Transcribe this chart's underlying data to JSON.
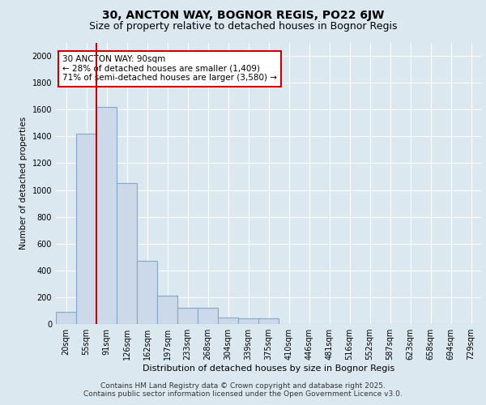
{
  "title": "30, ANCTON WAY, BOGNOR REGIS, PO22 6JW",
  "subtitle": "Size of property relative to detached houses in Bognor Regis",
  "xlabel": "Distribution of detached houses by size in Bognor Regis",
  "ylabel": "Number of detached properties",
  "categories": [
    "20sqm",
    "55sqm",
    "91sqm",
    "126sqm",
    "162sqm",
    "197sqm",
    "233sqm",
    "268sqm",
    "304sqm",
    "339sqm",
    "375sqm",
    "410sqm",
    "446sqm",
    "481sqm",
    "516sqm",
    "552sqm",
    "587sqm",
    "623sqm",
    "658sqm",
    "694sqm",
    "729sqm"
  ],
  "values": [
    90,
    1420,
    1620,
    1050,
    470,
    210,
    120,
    120,
    50,
    40,
    40,
    0,
    0,
    0,
    0,
    0,
    0,
    0,
    0,
    0,
    0
  ],
  "bar_color": "#ccd9e8",
  "bar_edgecolor": "#7fa8cc",
  "vline_color": "#cc0000",
  "vline_bar_index": 2,
  "annotation_text": "30 ANCTON WAY: 90sqm\n← 28% of detached houses are smaller (1,409)\n71% of semi-detached houses are larger (3,580) →",
  "annotation_box_facecolor": "#ffffff",
  "annotation_box_edgecolor": "#cc0000",
  "ylim": [
    0,
    2100
  ],
  "yticks": [
    0,
    200,
    400,
    600,
    800,
    1000,
    1200,
    1400,
    1600,
    1800,
    2000
  ],
  "bg_color": "#dce8f0",
  "plot_bg_color": "#dce8f0",
  "footer_line1": "Contains HM Land Registry data © Crown copyright and database right 2025.",
  "footer_line2": "Contains public sector information licensed under the Open Government Licence v3.0.",
  "title_fontsize": 10,
  "subtitle_fontsize": 9,
  "footer_fontsize": 6.5,
  "xlabel_fontsize": 8,
  "ylabel_fontsize": 7.5,
  "tick_fontsize": 7,
  "annot_fontsize": 7.5
}
